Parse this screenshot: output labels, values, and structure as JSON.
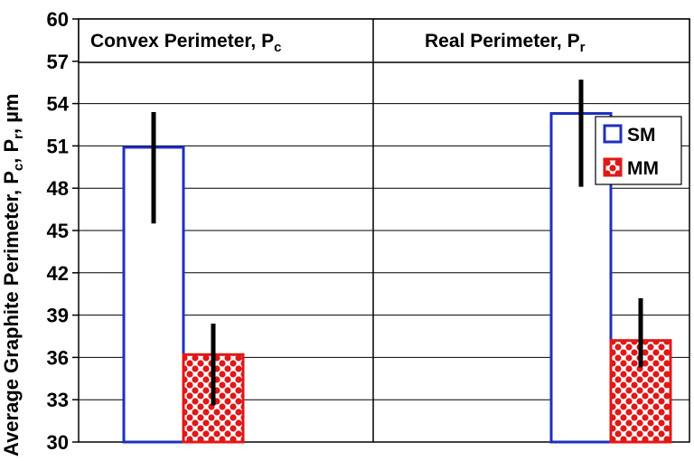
{
  "chart_data": {
    "type": "bar",
    "title": "",
    "ylabel": {
      "main": "Average Graphite Perimeter, P",
      "sub1": "c",
      "sep": ", P",
      "sub2": "r",
      "unit": ", µm"
    },
    "ylim": [
      30,
      60
    ],
    "yticks": [
      30,
      33,
      36,
      39,
      42,
      45,
      48,
      51,
      54,
      57,
      60
    ],
    "panels": [
      {
        "label": "Convex Perimeter, P",
        "label_sub": "c"
      },
      {
        "label": "Real Perimeter, P",
        "label_sub": "r"
      }
    ],
    "series": [
      {
        "name": "SM",
        "color": "#1f2fbf",
        "values": [
          50.9,
          53.3
        ],
        "error_low": [
          45.5,
          48.1
        ],
        "error_high": [
          53.4,
          55.7
        ]
      },
      {
        "name": "MM",
        "color": "#e01818",
        "values": [
          36.2,
          37.2
        ],
        "error_low": [
          32.6,
          35.3
        ],
        "error_high": [
          38.4,
          40.2
        ]
      }
    ],
    "legend": "right-upper"
  }
}
